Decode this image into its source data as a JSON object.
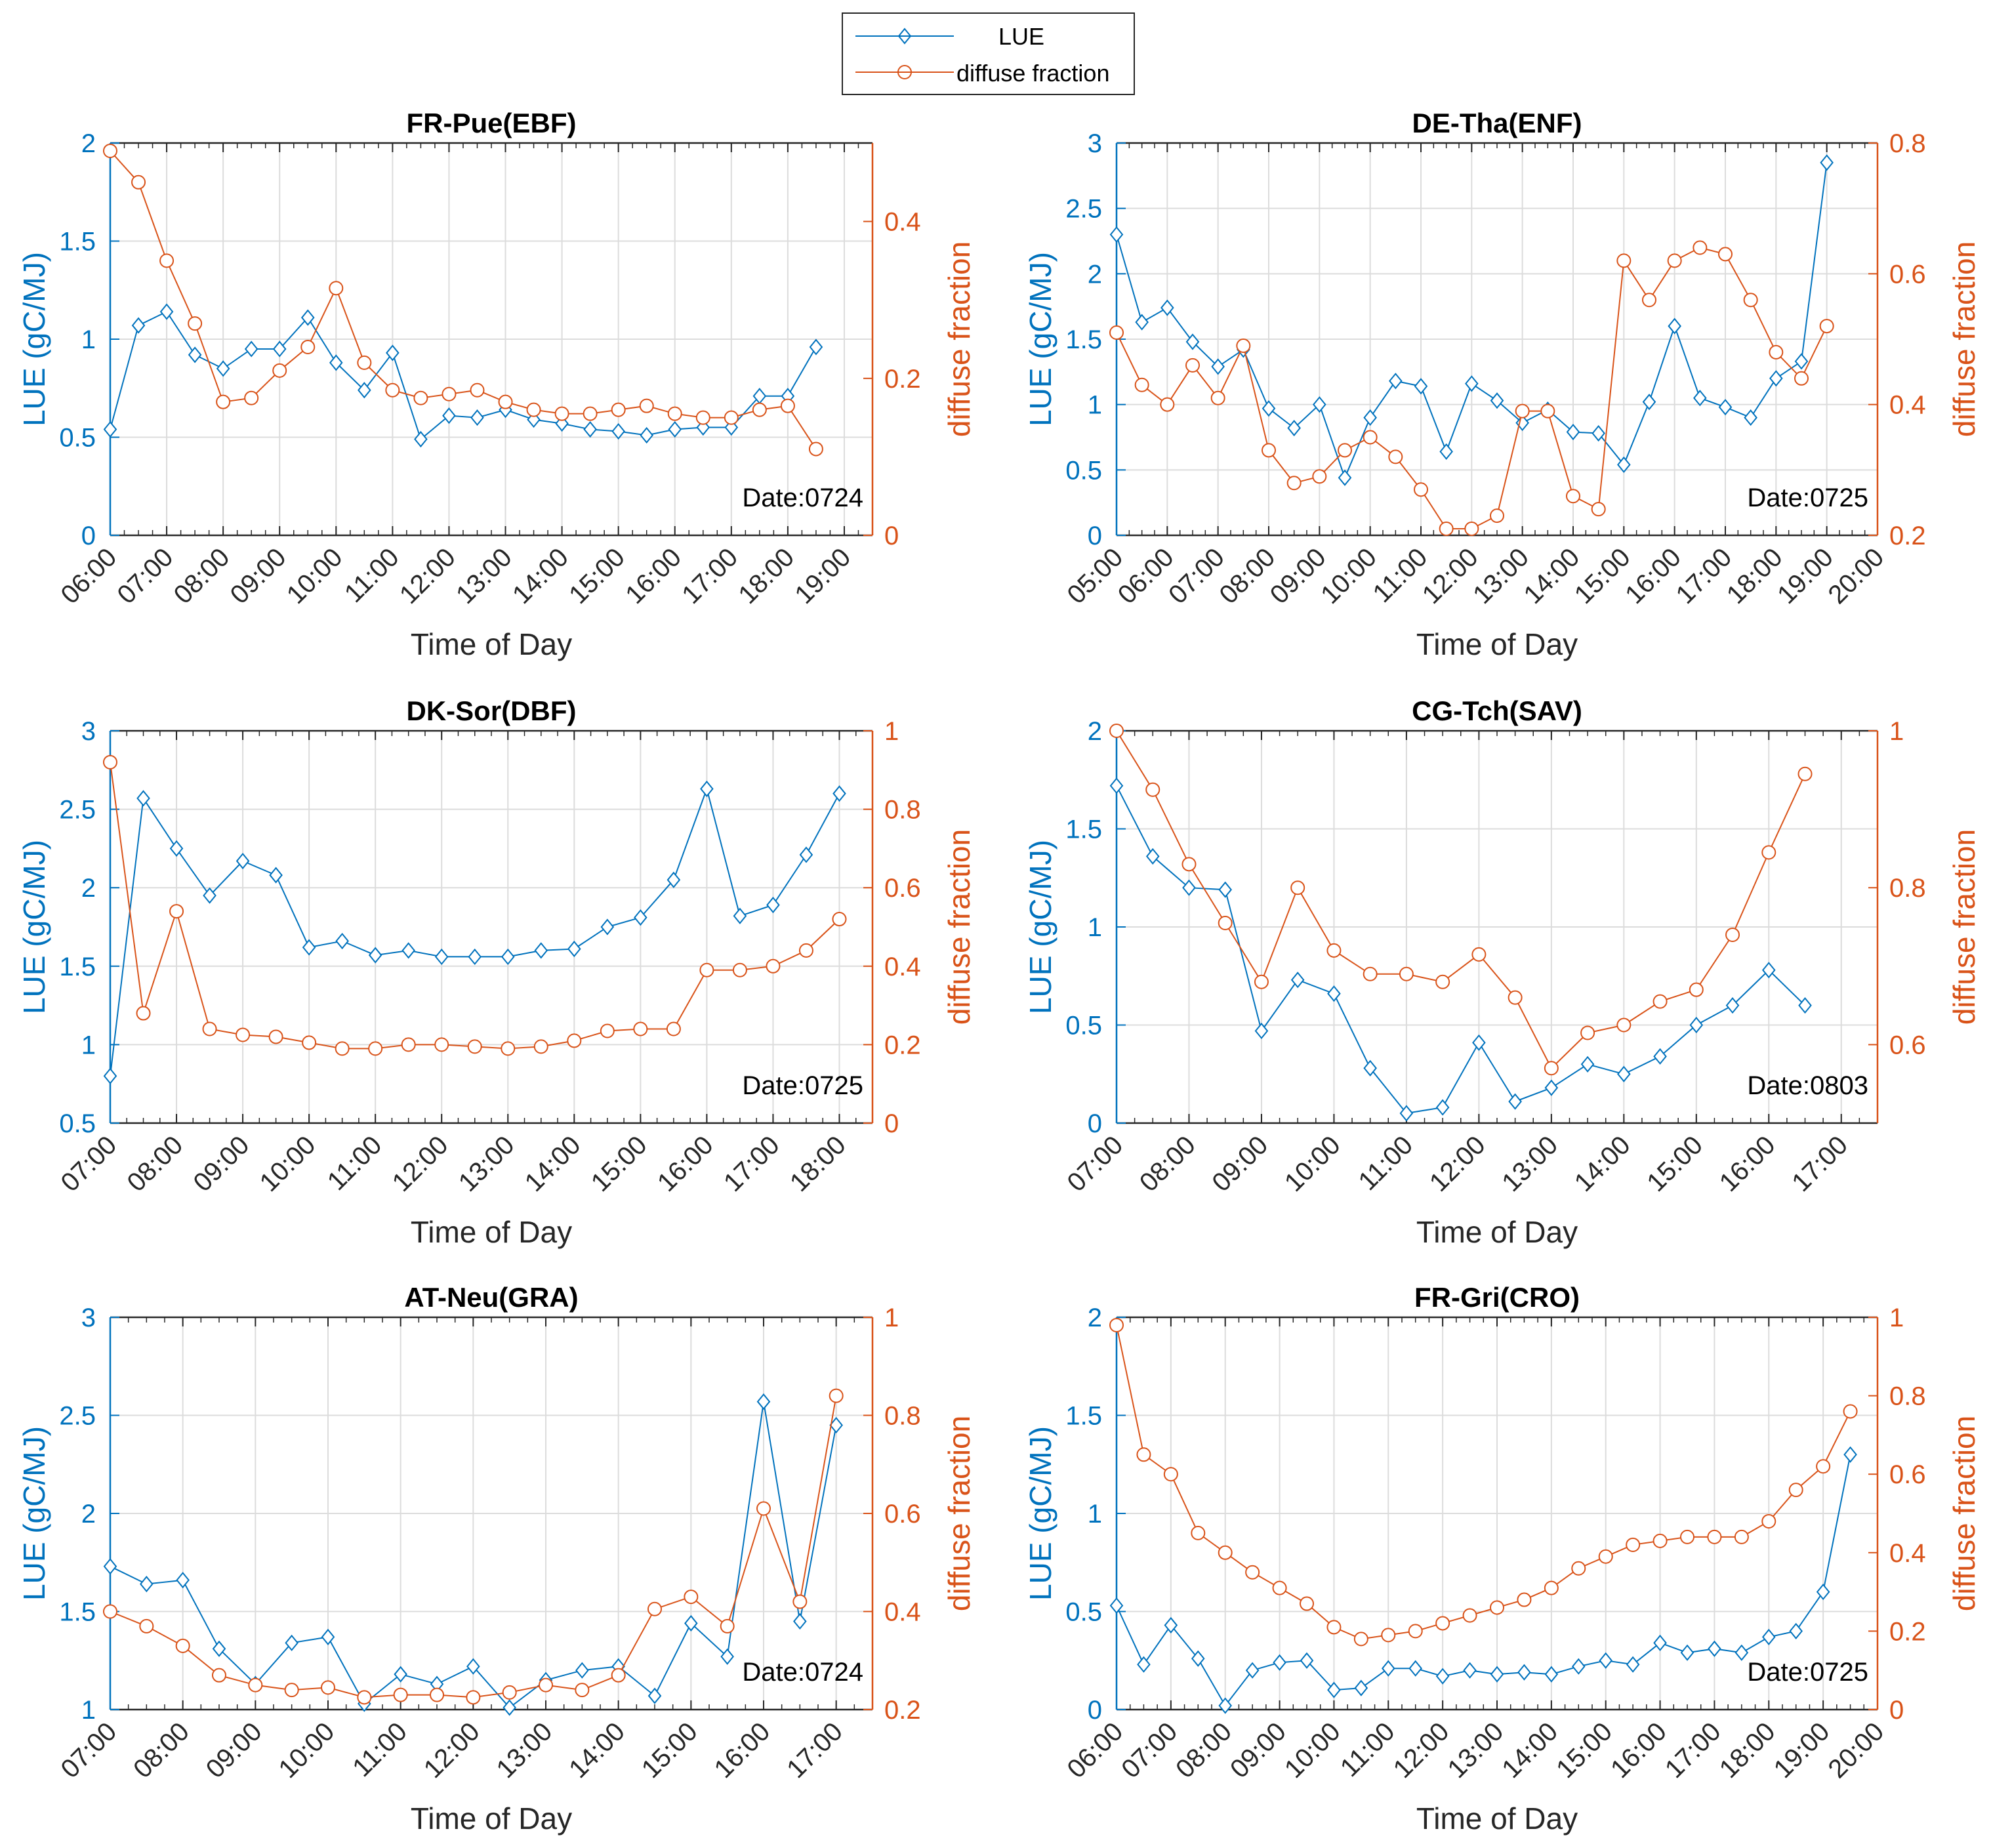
{
  "colors": {
    "lue": "#0072BD",
    "diffuse": "#D95319",
    "grid": "#dcdcdc",
    "axis": "#262626"
  },
  "legend": {
    "lue_label": "LUE",
    "diffuse_label": "diffuse fraction"
  },
  "chart_data": [
    {
      "type": "line",
      "title": "FR-Pue(EBF)",
      "date": "Date:0724",
      "xlabel": "Time of Day",
      "ylabel_left": "LUE (gC/MJ)",
      "ylabel_right": "diffuse fraction",
      "xlim": [
        6,
        19.5
      ],
      "xticks": [
        6,
        7,
        8,
        9,
        10,
        11,
        12,
        13,
        14,
        15,
        16,
        17,
        18,
        19
      ],
      "xtick_labels": [
        "06:00",
        "07:00",
        "08:00",
        "09:00",
        "10:00",
        "11:00",
        "12:00",
        "13:00",
        "14:00",
        "15:00",
        "16:00",
        "17:00",
        "18:00",
        "19:00"
      ],
      "ylim_left": [
        0,
        2
      ],
      "yticks_left": [
        0,
        0.5,
        1,
        1.5,
        2
      ],
      "ytick_labels_left": [
        "0",
        "0.5",
        "1",
        "1.5",
        "2"
      ],
      "ylim_right": [
        0,
        0.5
      ],
      "yticks_right": [
        0,
        0.2,
        0.4
      ],
      "ytick_labels_right": [
        "0",
        "0.2",
        "0.4"
      ],
      "x": [
        6,
        6.5,
        7,
        7.5,
        8,
        8.5,
        9,
        9.5,
        10,
        10.5,
        11,
        11.5,
        12,
        12.5,
        13,
        13.5,
        14,
        14.5,
        15,
        15.5,
        16,
        16.5,
        17,
        17.5,
        18,
        18.5
      ],
      "series": [
        {
          "name": "LUE",
          "axis": "left",
          "marker": "diamond",
          "values": [
            0.54,
            1.07,
            1.14,
            0.92,
            0.85,
            0.95,
            0.95,
            1.11,
            0.88,
            0.74,
            0.93,
            0.49,
            0.61,
            0.6,
            0.64,
            0.59,
            0.57,
            0.54,
            0.53,
            0.51,
            0.54,
            0.55,
            0.55,
            0.71,
            0.71,
            0.96
          ]
        },
        {
          "name": "diffuse fraction",
          "axis": "right",
          "marker": "circle",
          "values": [
            0.49,
            0.45,
            0.35,
            0.27,
            0.17,
            0.175,
            0.21,
            0.24,
            0.315,
            0.22,
            0.185,
            0.175,
            0.18,
            0.185,
            0.17,
            0.16,
            0.155,
            0.155,
            0.16,
            0.165,
            0.155,
            0.15,
            0.15,
            0.16,
            0.165,
            0.11
          ]
        }
      ]
    },
    {
      "type": "line",
      "title": "DE-Tha(ENF)",
      "date": "Date:0725",
      "xlabel": "Time of Day",
      "ylabel_left": "LUE (gC/MJ)",
      "ylabel_right": "diffuse fraction",
      "xlim": [
        5,
        20
      ],
      "xticks": [
        5,
        6,
        7,
        8,
        9,
        10,
        11,
        12,
        13,
        14,
        15,
        16,
        17,
        18,
        19,
        20
      ],
      "xtick_labels": [
        "05:00",
        "06:00",
        "07:00",
        "08:00",
        "09:00",
        "10:00",
        "11:00",
        "12:00",
        "13:00",
        "14:00",
        "15:00",
        "16:00",
        "17:00",
        "18:00",
        "19:00",
        "20:00"
      ],
      "ylim_left": [
        0,
        3
      ],
      "yticks_left": [
        0,
        0.5,
        1,
        1.5,
        2,
        2.5,
        3
      ],
      "ytick_labels_left": [
        "0",
        "0.5",
        "1",
        "1.5",
        "2",
        "2.5",
        "3"
      ],
      "ylim_right": [
        0.2,
        0.8
      ],
      "yticks_right": [
        0.2,
        0.4,
        0.6,
        0.8
      ],
      "ytick_labels_right": [
        "0.2",
        "0.4",
        "0.6",
        "0.8"
      ],
      "x": [
        5,
        5.5,
        6,
        6.5,
        7,
        7.5,
        8,
        8.5,
        9,
        9.5,
        10,
        10.5,
        11,
        11.5,
        12,
        12.5,
        13,
        13.5,
        14,
        14.5,
        15,
        15.5,
        16,
        16.5,
        17,
        17.5,
        18,
        18.5,
        19
      ],
      "series": [
        {
          "name": "LUE",
          "axis": "left",
          "marker": "diamond",
          "values": [
            2.3,
            1.63,
            1.74,
            1.48,
            1.29,
            1.42,
            0.97,
            0.82,
            1.0,
            0.44,
            0.9,
            1.18,
            1.14,
            0.64,
            1.16,
            1.03,
            0.86,
            0.96,
            0.79,
            0.78,
            0.54,
            1.02,
            1.6,
            1.05,
            0.98,
            0.9,
            1.2,
            1.33,
            2.85
          ]
        },
        {
          "name": "diffuse fraction",
          "axis": "right",
          "marker": "circle",
          "values": [
            0.51,
            0.43,
            0.4,
            0.46,
            0.41,
            0.49,
            0.33,
            0.28,
            0.29,
            0.33,
            0.35,
            0.32,
            0.27,
            0.21,
            0.21,
            0.23,
            0.39,
            0.39,
            0.26,
            0.24,
            0.62,
            0.56,
            0.62,
            0.64,
            0.63,
            0.56,
            0.48,
            0.44,
            0.52
          ]
        }
      ]
    },
    {
      "type": "line",
      "title": "DK-Sor(DBF)",
      "date": "Date:0725",
      "xlabel": "Time of Day",
      "ylabel_left": "LUE (gC/MJ)",
      "ylabel_right": "diffuse fraction",
      "xlim": [
        7,
        18.5
      ],
      "xticks": [
        7,
        8,
        9,
        10,
        11,
        12,
        13,
        14,
        15,
        16,
        17,
        18
      ],
      "xtick_labels": [
        "07:00",
        "08:00",
        "09:00",
        "10:00",
        "11:00",
        "12:00",
        "13:00",
        "14:00",
        "15:00",
        "16:00",
        "17:00",
        "18:00"
      ],
      "ylim_left": [
        0.5,
        3
      ],
      "yticks_left": [
        0.5,
        1,
        1.5,
        2,
        2.5,
        3
      ],
      "ytick_labels_left": [
        "0.5",
        "1",
        "1.5",
        "2",
        "2.5",
        "3"
      ],
      "ylim_right": [
        0,
        1
      ],
      "yticks_right": [
        0,
        0.2,
        0.4,
        0.6,
        0.8,
        1
      ],
      "ytick_labels_right": [
        "0",
        "0.2",
        "0.4",
        "0.6",
        "0.8",
        "1"
      ],
      "x": [
        7,
        7.5,
        8,
        8.5,
        9,
        9.5,
        10,
        10.5,
        11,
        11.5,
        12,
        12.5,
        13,
        13.5,
        14,
        14.5,
        15,
        15.5,
        16,
        16.5,
        17,
        17.5,
        18
      ],
      "series": [
        {
          "name": "LUE",
          "axis": "left",
          "marker": "diamond",
          "values": [
            0.8,
            2.57,
            2.25,
            1.95,
            2.17,
            2.08,
            1.62,
            1.66,
            1.57,
            1.6,
            1.56,
            1.56,
            1.56,
            1.6,
            1.61,
            1.75,
            1.81,
            2.05,
            2.63,
            1.82,
            1.89,
            2.21,
            2.6
          ]
        },
        {
          "name": "diffuse fraction",
          "axis": "right",
          "marker": "circle",
          "values": [
            0.92,
            0.28,
            0.54,
            0.24,
            0.225,
            0.22,
            0.205,
            0.19,
            0.19,
            0.2,
            0.2,
            0.195,
            0.19,
            0.195,
            0.21,
            0.235,
            0.24,
            0.24,
            0.39,
            0.39,
            0.4,
            0.44,
            0.52
          ]
        }
      ]
    },
    {
      "type": "line",
      "title": "CG-Tch(SAV)",
      "date": "Date:0803",
      "xlabel": "Time of Day",
      "ylabel_left": "LUE (gC/MJ)",
      "ylabel_right": "diffuse fraction",
      "xlim": [
        7,
        17.5
      ],
      "xticks": [
        7,
        8,
        9,
        10,
        11,
        12,
        13,
        14,
        15,
        16,
        17
      ],
      "xtick_labels": [
        "07:00",
        "08:00",
        "09:00",
        "10:00",
        "11:00",
        "12:00",
        "13:00",
        "14:00",
        "15:00",
        "16:00",
        "17:00"
      ],
      "ylim_left": [
        0,
        2
      ],
      "yticks_left": [
        0,
        0.5,
        1,
        1.5,
        2
      ],
      "ytick_labels_left": [
        "0",
        "0.5",
        "1",
        "1.5",
        "2"
      ],
      "ylim_right": [
        0.5,
        1
      ],
      "yticks_right": [
        0.6,
        0.8,
        1
      ],
      "ytick_labels_right": [
        "0.6",
        "0.8",
        "1"
      ],
      "x": [
        7,
        7.5,
        8,
        8.5,
        9,
        9.5,
        10,
        10.5,
        11,
        11.5,
        12,
        12.5,
        13,
        13.5,
        14,
        14.5,
        15,
        15.5,
        16,
        16.5
      ],
      "series": [
        {
          "name": "LUE",
          "axis": "left",
          "marker": "diamond",
          "values": [
            1.72,
            1.36,
            1.2,
            1.19,
            0.47,
            0.73,
            0.66,
            0.28,
            0.05,
            0.08,
            0.41,
            0.11,
            0.18,
            0.3,
            0.25,
            0.34,
            0.5,
            0.6,
            0.78,
            0.6
          ]
        },
        {
          "name": "diffuse fraction",
          "axis": "right",
          "marker": "circle",
          "values": [
            1.0,
            0.925,
            0.83,
            0.755,
            0.68,
            0.8,
            0.72,
            0.69,
            0.69,
            0.68,
            0.715,
            0.66,
            0.57,
            0.615,
            0.625,
            0.655,
            0.67,
            0.74,
            0.845,
            0.945
          ]
        }
      ]
    },
    {
      "type": "line",
      "title": "AT-Neu(GRA)",
      "date": "Date:0724",
      "xlabel": "Time of Day",
      "ylabel_left": "LUE (gC/MJ)",
      "ylabel_right": "diffuse fraction",
      "xlim": [
        7,
        17.5
      ],
      "xticks": [
        7,
        8,
        9,
        10,
        11,
        12,
        13,
        14,
        15,
        16,
        17
      ],
      "xtick_labels": [
        "07:00",
        "08:00",
        "09:00",
        "10:00",
        "11:00",
        "12:00",
        "13:00",
        "14:00",
        "15:00",
        "16:00",
        "17:00"
      ],
      "ylim_left": [
        1,
        3
      ],
      "yticks_left": [
        1,
        1.5,
        2,
        2.5,
        3
      ],
      "ytick_labels_left": [
        "1",
        "1.5",
        "2",
        "2.5",
        "3"
      ],
      "ylim_right": [
        0.2,
        1
      ],
      "yticks_right": [
        0.2,
        0.4,
        0.6,
        0.8,
        1
      ],
      "ytick_labels_right": [
        "0.2",
        "0.4",
        "0.6",
        "0.8",
        "1"
      ],
      "x": [
        7,
        7.5,
        8,
        8.5,
        9,
        9.5,
        10,
        10.5,
        11,
        11.5,
        12,
        12.5,
        13,
        13.5,
        14,
        14.5,
        15,
        15.5,
        16,
        16.5,
        17
      ],
      "series": [
        {
          "name": "LUE",
          "axis": "left",
          "marker": "diamond",
          "values": [
            1.73,
            1.64,
            1.66,
            1.31,
            1.13,
            1.34,
            1.37,
            1.03,
            1.18,
            1.13,
            1.22,
            1.01,
            1.15,
            1.2,
            1.22,
            1.07,
            1.44,
            1.27,
            2.57,
            1.45,
            2.45
          ]
        },
        {
          "name": "diffuse fraction",
          "axis": "right",
          "marker": "circle",
          "values": [
            0.4,
            0.37,
            0.33,
            0.27,
            0.25,
            0.24,
            0.245,
            0.225,
            0.23,
            0.23,
            0.225,
            0.235,
            0.25,
            0.24,
            0.27,
            0.405,
            0.43,
            0.37,
            0.61,
            0.42,
            0.84
          ]
        }
      ]
    },
    {
      "type": "line",
      "title": "FR-Gri(CRO)",
      "date": "Date:0725",
      "xlabel": "Time of Day",
      "ylabel_left": "LUE (gC/MJ)",
      "ylabel_right": "diffuse fraction",
      "xlim": [
        6,
        20
      ],
      "xticks": [
        6,
        7,
        8,
        9,
        10,
        11,
        12,
        13,
        14,
        15,
        16,
        17,
        18,
        19,
        20
      ],
      "xtick_labels": [
        "06:00",
        "07:00",
        "08:00",
        "09:00",
        "10:00",
        "11:00",
        "12:00",
        "13:00",
        "14:00",
        "15:00",
        "16:00",
        "17:00",
        "18:00",
        "19:00",
        "20:00"
      ],
      "ylim_left": [
        0,
        2
      ],
      "yticks_left": [
        0,
        0.5,
        1,
        1.5,
        2
      ],
      "ytick_labels_left": [
        "0",
        "0.5",
        "1",
        "1.5",
        "2"
      ],
      "ylim_right": [
        0,
        1
      ],
      "yticks_right": [
        0,
        0.2,
        0.4,
        0.6,
        0.8,
        1
      ],
      "ytick_labels_right": [
        "0",
        "0.2",
        "0.4",
        "0.6",
        "0.8",
        "1"
      ],
      "x": [
        6,
        6.5,
        7,
        7.5,
        8,
        8.5,
        9,
        9.5,
        10,
        10.5,
        11,
        11.5,
        12,
        12.5,
        13,
        13.5,
        14,
        14.5,
        15,
        15.5,
        16,
        16.5,
        17,
        17.5,
        18,
        18.5,
        19,
        19.5
      ],
      "series": [
        {
          "name": "LUE",
          "axis": "left",
          "marker": "diamond",
          "values": [
            0.53,
            0.23,
            0.43,
            0.26,
            0.02,
            0.2,
            0.24,
            0.25,
            0.1,
            0.11,
            0.21,
            0.21,
            0.17,
            0.2,
            0.18,
            0.19,
            0.18,
            0.22,
            0.25,
            0.23,
            0.34,
            0.29,
            0.31,
            0.29,
            0.37,
            0.4,
            0.6,
            1.3
          ]
        },
        {
          "name": "diffuse fraction",
          "axis": "right",
          "marker": "circle",
          "values": [
            0.98,
            0.65,
            0.6,
            0.45,
            0.4,
            0.35,
            0.31,
            0.27,
            0.21,
            0.18,
            0.19,
            0.2,
            0.22,
            0.24,
            0.26,
            0.28,
            0.31,
            0.36,
            0.39,
            0.42,
            0.43,
            0.44,
            0.44,
            0.44,
            0.48,
            0.56,
            0.62,
            0.76
          ]
        }
      ]
    }
  ]
}
